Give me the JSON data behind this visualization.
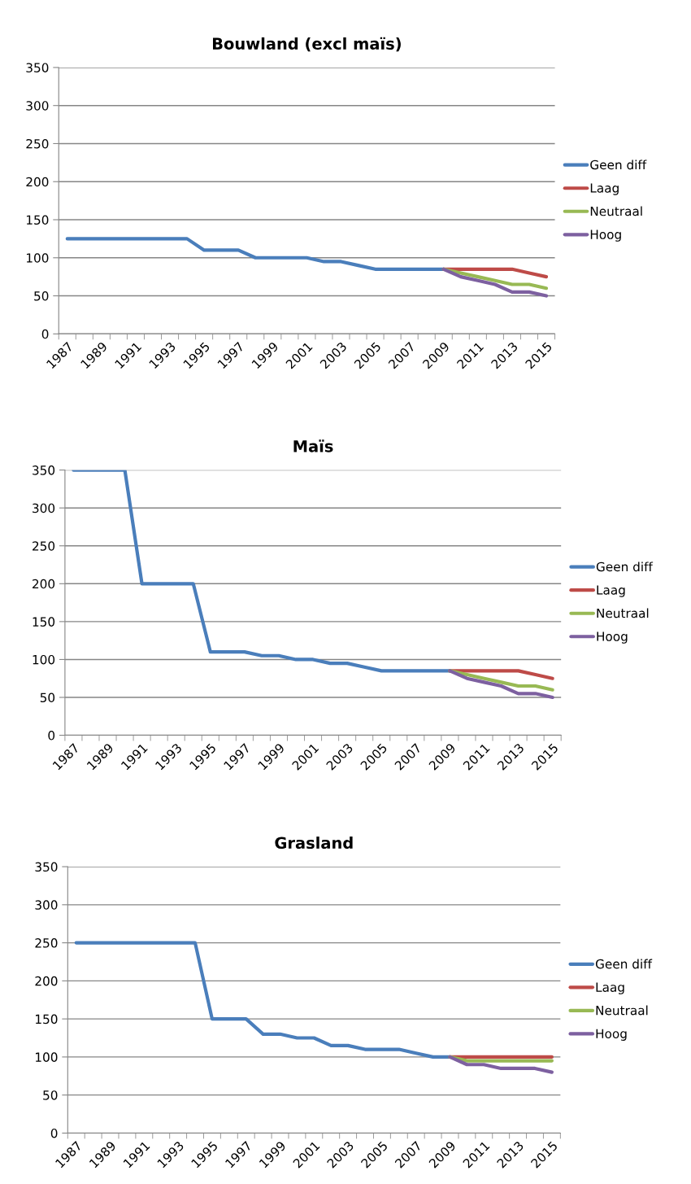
{
  "chart_data": [
    {
      "type": "line",
      "title": "Bouwland (excl maïs)",
      "categories": [
        "1987",
        null,
        "1989",
        null,
        "1991",
        null,
        "1993",
        null,
        "1995",
        null,
        "1997",
        null,
        "1999",
        null,
        "2001",
        null,
        "2003",
        null,
        "2005",
        null,
        "2007",
        null,
        "2009",
        null,
        "2011",
        null,
        "2013",
        null,
        "2015"
      ],
      "series": [
        {
          "name": "Geen diff",
          "color": "#4a7ebb",
          "values": [
            125,
            125,
            125,
            125,
            125,
            125,
            125,
            125,
            110,
            110,
            110,
            100,
            100,
            100,
            100,
            95,
            95,
            90,
            85,
            85,
            85,
            85,
            85,
            null,
            null,
            null,
            null,
            null,
            null
          ]
        },
        {
          "name": "Laag",
          "color": "#be4b48",
          "values": [
            null,
            null,
            null,
            null,
            null,
            null,
            null,
            null,
            null,
            null,
            null,
            null,
            null,
            null,
            null,
            null,
            null,
            null,
            null,
            null,
            null,
            null,
            85,
            85,
            85,
            85,
            85,
            80,
            75
          ]
        },
        {
          "name": "Neutraal",
          "color": "#98b954",
          "values": [
            null,
            null,
            null,
            null,
            null,
            null,
            null,
            null,
            null,
            null,
            null,
            null,
            null,
            null,
            null,
            null,
            null,
            null,
            null,
            null,
            null,
            null,
            85,
            80,
            75,
            70,
            65,
            65,
            60
          ]
        },
        {
          "name": "Hoog",
          "color": "#7d60a0",
          "values": [
            null,
            null,
            null,
            null,
            null,
            null,
            null,
            null,
            null,
            null,
            null,
            null,
            null,
            null,
            null,
            null,
            null,
            null,
            null,
            null,
            null,
            null,
            85,
            75,
            70,
            65,
            55,
            55,
            50
          ]
        }
      ],
      "ylim": [
        0,
        350
      ],
      "yticks": [
        0,
        50,
        100,
        150,
        200,
        250,
        300,
        350
      ],
      "grid": "y",
      "legend": "right"
    },
    {
      "type": "line",
      "title": "Maïs",
      "categories": [
        "1987",
        null,
        "1989",
        null,
        "1991",
        null,
        "1993",
        null,
        "1995",
        null,
        "1997",
        null,
        "1999",
        null,
        "2001",
        null,
        "2003",
        null,
        "2005",
        null,
        "2007",
        null,
        "2009",
        null,
        "2011",
        null,
        "2013",
        null,
        "2015"
      ],
      "series": [
        {
          "name": "Geen diff",
          "color": "#4a7ebb",
          "values": [
            350,
            350,
            350,
            350,
            200,
            200,
            200,
            200,
            110,
            110,
            110,
            105,
            105,
            100,
            100,
            95,
            95,
            90,
            85,
            85,
            85,
            85,
            85,
            null,
            null,
            null,
            null,
            null,
            null
          ]
        },
        {
          "name": "Laag",
          "color": "#be4b48",
          "values": [
            null,
            null,
            null,
            null,
            null,
            null,
            null,
            null,
            null,
            null,
            null,
            null,
            null,
            null,
            null,
            null,
            null,
            null,
            null,
            null,
            null,
            null,
            85,
            85,
            85,
            85,
            85,
            80,
            75
          ]
        },
        {
          "name": "Neutraal",
          "color": "#98b954",
          "values": [
            null,
            null,
            null,
            null,
            null,
            null,
            null,
            null,
            null,
            null,
            null,
            null,
            null,
            null,
            null,
            null,
            null,
            null,
            null,
            null,
            null,
            null,
            85,
            80,
            75,
            70,
            65,
            65,
            60
          ]
        },
        {
          "name": "Hoog",
          "color": "#7d60a0",
          "values": [
            null,
            null,
            null,
            null,
            null,
            null,
            null,
            null,
            null,
            null,
            null,
            null,
            null,
            null,
            null,
            null,
            null,
            null,
            null,
            null,
            null,
            null,
            85,
            75,
            70,
            65,
            55,
            55,
            50
          ]
        }
      ],
      "ylim": [
        0,
        350
      ],
      "yticks": [
        0,
        50,
        100,
        150,
        200,
        250,
        300,
        350
      ],
      "grid": "y",
      "legend": "right"
    },
    {
      "type": "line",
      "title": "Grasland",
      "categories": [
        "1987",
        null,
        "1989",
        null,
        "1991",
        null,
        "1993",
        null,
        "1995",
        null,
        "1997",
        null,
        "1999",
        null,
        "2001",
        null,
        "2003",
        null,
        "2005",
        null,
        "2007",
        null,
        "2009",
        null,
        "2011",
        null,
        "2013",
        null,
        "2015"
      ],
      "series": [
        {
          "name": "Geen diff",
          "color": "#4a7ebb",
          "values": [
            250,
            250,
            250,
            250,
            250,
            250,
            250,
            250,
            150,
            150,
            150,
            130,
            130,
            125,
            125,
            115,
            115,
            110,
            110,
            110,
            105,
            100,
            100,
            null,
            null,
            null,
            null,
            null,
            null
          ]
        },
        {
          "name": "Laag",
          "color": "#be4b48",
          "values": [
            null,
            null,
            null,
            null,
            null,
            null,
            null,
            null,
            null,
            null,
            null,
            null,
            null,
            null,
            null,
            null,
            null,
            null,
            null,
            null,
            null,
            null,
            100,
            100,
            100,
            100,
            100,
            100,
            100
          ]
        },
        {
          "name": "Neutraal",
          "color": "#98b954",
          "values": [
            null,
            null,
            null,
            null,
            null,
            null,
            null,
            null,
            null,
            null,
            null,
            null,
            null,
            null,
            null,
            null,
            null,
            null,
            null,
            null,
            null,
            null,
            100,
            95,
            95,
            95,
            95,
            95,
            95
          ]
        },
        {
          "name": "Hoog",
          "color": "#7d60a0",
          "values": [
            null,
            null,
            null,
            null,
            null,
            null,
            null,
            null,
            null,
            null,
            null,
            null,
            null,
            null,
            null,
            null,
            null,
            null,
            null,
            null,
            null,
            null,
            100,
            90,
            90,
            85,
            85,
            85,
            80
          ]
        }
      ],
      "ylim": [
        0,
        350
      ],
      "yticks": [
        0,
        50,
        100,
        150,
        200,
        250,
        300,
        350
      ],
      "grid": "y",
      "legend": "right"
    }
  ]
}
